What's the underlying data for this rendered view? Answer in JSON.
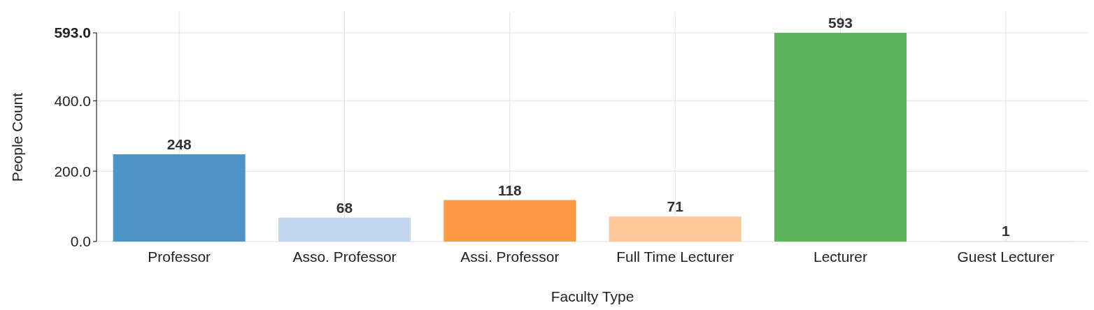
{
  "chart_data": {
    "type": "bar",
    "xlabel": "Faculty Type",
    "ylabel": "People Count",
    "categories": [
      "Professor",
      "Asso. Professor",
      "Assi. Professor",
      "Full Time Lecturer",
      "Lecturer",
      "Guest Lecturer"
    ],
    "values": [
      248,
      68,
      118,
      71,
      593,
      1
    ],
    "colors": [
      "#4f94c6",
      "#c2d6ee",
      "#ff9a44",
      "#ffc899",
      "#5db55b",
      "#b2e8a7"
    ],
    "ylim": [
      0,
      593
    ],
    "yticks": [
      {
        "value": 0,
        "label": "0.0"
      },
      {
        "value": 200,
        "label": "200.0"
      },
      {
        "value": 400,
        "label": "400.0"
      },
      {
        "value": 593,
        "label": "593.0"
      }
    ],
    "grid": true,
    "data_labels": true
  }
}
